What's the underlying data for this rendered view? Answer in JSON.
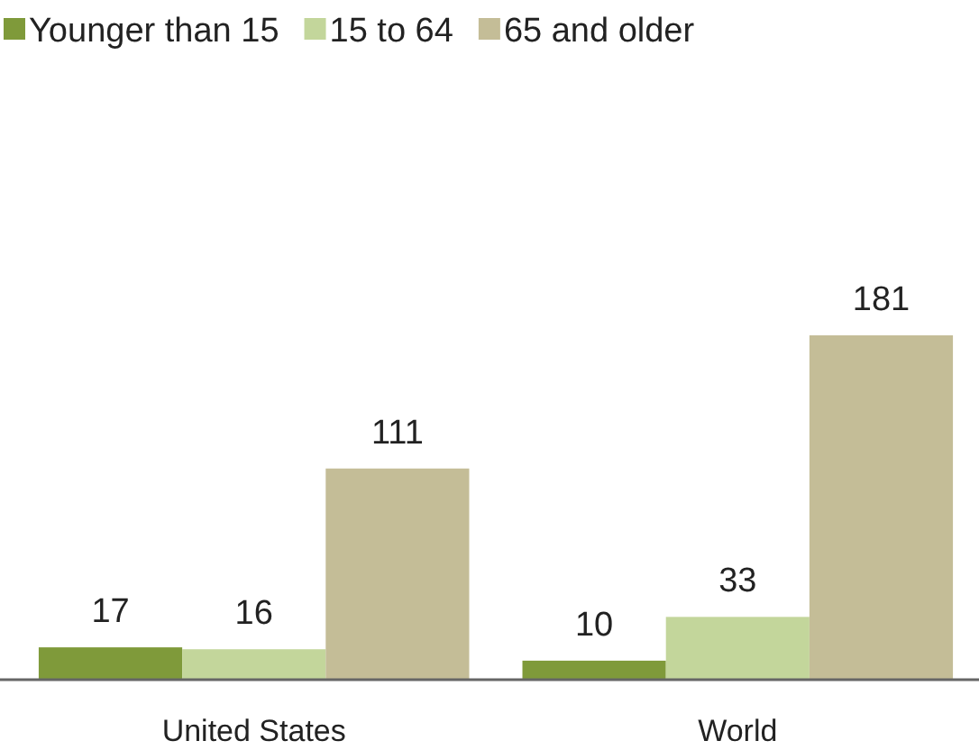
{
  "chart_data": {
    "type": "bar",
    "categories": [
      "United States",
      "World"
    ],
    "series": [
      {
        "name": "Younger than 15",
        "color": "#7f9a3a",
        "values": [
          17,
          10
        ]
      },
      {
        "name": "15 to 64",
        "color": "#c3d69b",
        "values": [
          16,
          33
        ]
      },
      {
        "name": "65 and older",
        "color": "#c4bd97",
        "values": [
          111,
          181
        ]
      }
    ],
    "data_labels": true,
    "legend": "top"
  }
}
